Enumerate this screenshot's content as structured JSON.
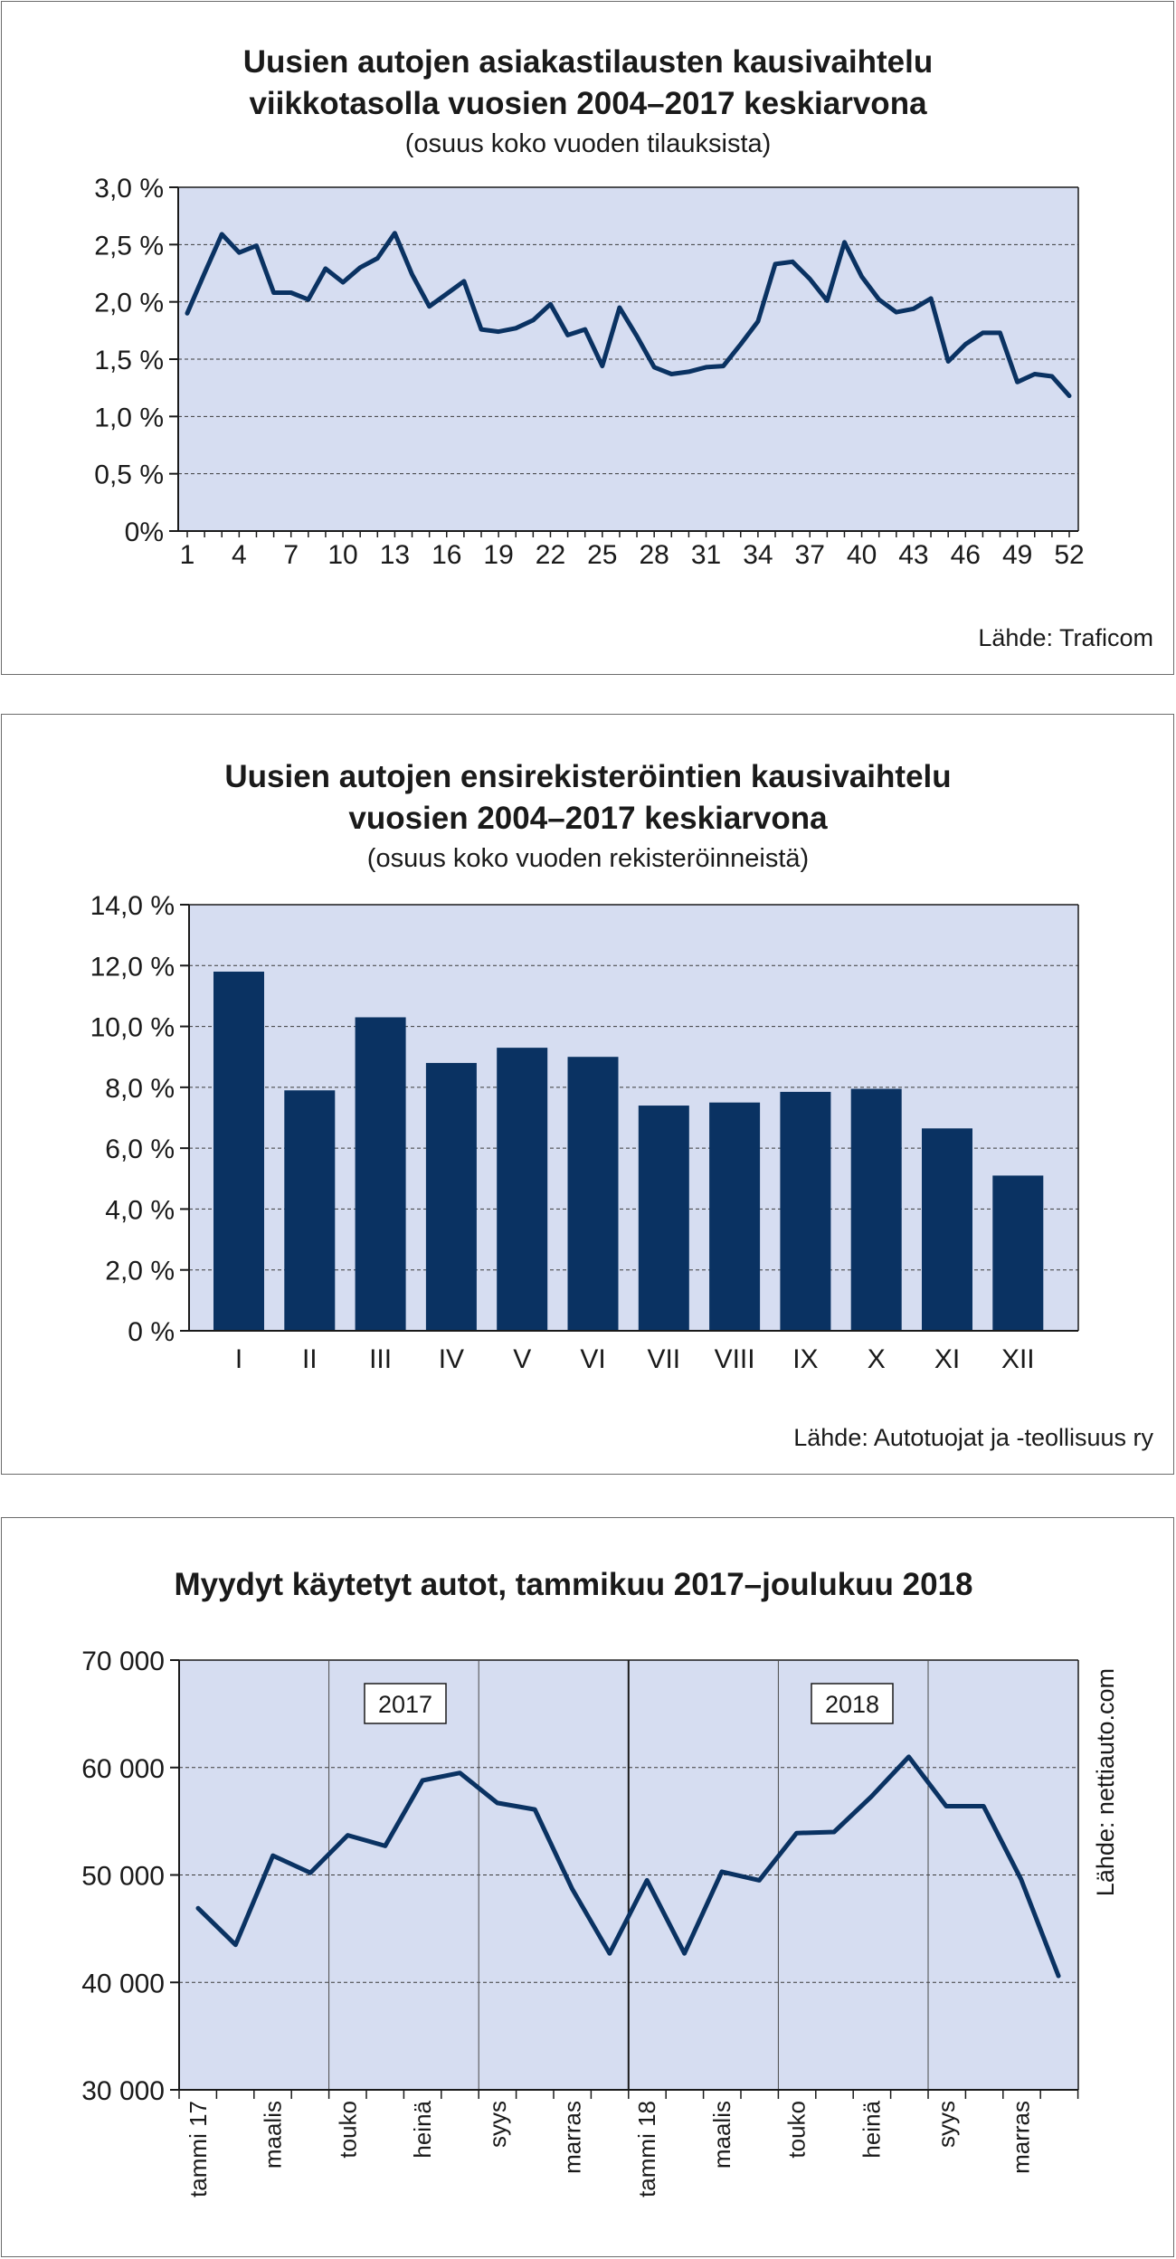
{
  "chart_data": [
    {
      "type": "line",
      "title_line1": "Uusien autojen asiakastilausten kausivaihtelu",
      "title_line2": "viikkotasolla vuosien 2004–2017 keskiarvona",
      "subtitle": "(osuus koko vuoden tilauksista)",
      "source": "Lähde: Traficom",
      "ylim": [
        0,
        3.0
      ],
      "xlim": [
        1,
        52
      ],
      "y_ticks": [
        {
          "value": 0,
          "label": "0%"
        },
        {
          "value": 0.5,
          "label": "0,5 %"
        },
        {
          "value": 1.0,
          "label": "1,0 %"
        },
        {
          "value": 1.5,
          "label": "1,5 %"
        },
        {
          "value": 2.0,
          "label": "2,0 %"
        },
        {
          "value": 2.5,
          "label": "2,5 %"
        },
        {
          "value": 3.0,
          "label": "3,0 %"
        }
      ],
      "x_ticks": [
        {
          "value": 1,
          "label": "1"
        },
        {
          "value": 4,
          "label": "4"
        },
        {
          "value": 7,
          "label": "7"
        },
        {
          "value": 10,
          "label": "10"
        },
        {
          "value": 13,
          "label": "13"
        },
        {
          "value": 16,
          "label": "16"
        },
        {
          "value": 19,
          "label": "19"
        },
        {
          "value": 22,
          "label": "22"
        },
        {
          "value": 25,
          "label": "25"
        },
        {
          "value": 28,
          "label": "28"
        },
        {
          "value": 31,
          "label": "31"
        },
        {
          "value": 34,
          "label": "34"
        },
        {
          "value": 37,
          "label": "37"
        },
        {
          "value": 40,
          "label": "40"
        },
        {
          "value": 43,
          "label": "43"
        },
        {
          "value": 46,
          "label": "46"
        },
        {
          "value": 49,
          "label": "49"
        },
        {
          "value": 52,
          "label": "52"
        }
      ],
      "grid": "horizontal-dashed",
      "series": [
        {
          "x": [
            1,
            2,
            3,
            4,
            5,
            6,
            7,
            8,
            9,
            10,
            11,
            12,
            13,
            14,
            15,
            16,
            17,
            18,
            19,
            20,
            21,
            22,
            23,
            24,
            25,
            26,
            27,
            28,
            29,
            30,
            31,
            32,
            33,
            34,
            35,
            36,
            37,
            38,
            39,
            40,
            41,
            42,
            43,
            44,
            45,
            46,
            47,
            48,
            49,
            50,
            51,
            52
          ],
          "values": [
            1.9,
            2.25,
            2.59,
            2.43,
            2.49,
            2.08,
            2.08,
            2.02,
            2.29,
            2.17,
            2.3,
            2.38,
            2.6,
            2.24,
            1.96,
            2.07,
            2.18,
            1.76,
            1.74,
            1.77,
            1.84,
            1.98,
            1.71,
            1.76,
            1.44,
            1.95,
            1.7,
            1.43,
            1.37,
            1.39,
            1.43,
            1.44,
            1.63,
            1.83,
            2.33,
            2.35,
            2.2,
            2.01,
            2.52,
            2.22,
            2.02,
            1.91,
            1.94,
            2.03,
            1.48,
            1.63,
            1.73,
            1.73,
            1.3,
            1.37,
            1.35,
            1.18
          ]
        }
      ]
    },
    {
      "type": "bar",
      "title_line1": "Uusien autojen ensirekisteröintien kausivaihtelu",
      "title_line2": "vuosien 2004–2017 keskiarvona",
      "subtitle": "(osuus koko vuoden rekisteröinneistä)",
      "source": "Lähde: Autotuojat ja -teollisuus ry",
      "ylim": [
        0,
        14.0
      ],
      "y_ticks": [
        {
          "value": 0,
          "label": "0 %"
        },
        {
          "value": 2,
          "label": "2,0 %"
        },
        {
          "value": 4,
          "label": "4,0 %"
        },
        {
          "value": 6,
          "label": "6,0 %"
        },
        {
          "value": 8,
          "label": "8,0 %"
        },
        {
          "value": 10,
          "label": "10,0 %"
        },
        {
          "value": 12,
          "label": "12,0 %"
        },
        {
          "value": 14,
          "label": "14,0 %"
        }
      ],
      "grid": "horizontal-dashed",
      "categories": [
        "I",
        "II",
        "III",
        "IV",
        "V",
        "VI",
        "VII",
        "VIII",
        "IX",
        "X",
        "XI",
        "XII"
      ],
      "values": [
        11.8,
        7.9,
        10.3,
        8.8,
        9.3,
        9.0,
        7.4,
        7.5,
        7.85,
        7.95,
        6.65,
        5.1
      ]
    },
    {
      "type": "line",
      "title": "Myydyt käytetyt autot, tammikuu 2017–joulukuu 2018",
      "source": "Lähde: nettiauto.com",
      "ylim": [
        30000,
        70000
      ],
      "y_ticks": [
        {
          "value": 30000,
          "label": "30 000"
        },
        {
          "value": 40000,
          "label": "40 000"
        },
        {
          "value": 50000,
          "label": "50 000"
        },
        {
          "value": 60000,
          "label": "60 000"
        },
        {
          "value": 70000,
          "label": "70 000"
        }
      ],
      "x_tick_labels": [
        {
          "index": 0,
          "label": "tammi 17"
        },
        {
          "index": 2,
          "label": "maalis"
        },
        {
          "index": 4,
          "label": "touko"
        },
        {
          "index": 6,
          "label": "heinä"
        },
        {
          "index": 8,
          "label": "syys"
        },
        {
          "index": 10,
          "label": "marras"
        },
        {
          "index": 12,
          "label": "tammi 18"
        },
        {
          "index": 14,
          "label": "maalis"
        },
        {
          "index": 16,
          "label": "touko"
        },
        {
          "index": 18,
          "label": "heinä"
        },
        {
          "index": 20,
          "label": "syys"
        },
        {
          "index": 22,
          "label": "marras"
        }
      ],
      "year_labels": [
        "2017",
        "2018"
      ],
      "grid": "horizontal-dashed",
      "series": [
        {
          "values": [
            46900,
            43500,
            51800,
            50200,
            53700,
            52700,
            58800,
            59500,
            56700,
            56100,
            48700,
            42700,
            49500,
            42700,
            50300,
            49500,
            53900,
            54000,
            57300,
            61000,
            56400,
            56400,
            49600,
            40600
          ]
        }
      ]
    }
  ]
}
